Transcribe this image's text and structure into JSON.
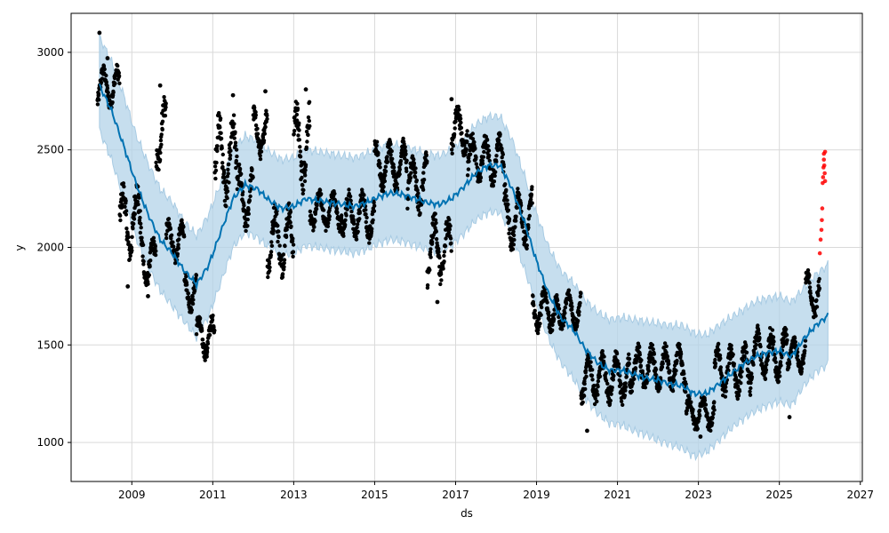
{
  "chart_data": {
    "type": "scatter",
    "title": "",
    "xlabel": "ds",
    "ylabel": "y",
    "xlim": [
      2007.5,
      2027.05
    ],
    "ylim": [
      800,
      3200
    ],
    "x_ticks": [
      2009,
      2011,
      2013,
      2015,
      2017,
      2019,
      2021,
      2023,
      2025,
      2027
    ],
    "y_ticks": [
      1000,
      1500,
      2000,
      2500,
      3000
    ],
    "grid": true,
    "legend": "none",
    "colors": {
      "observed": "#000000",
      "new_observed": "#ff0000",
      "forecast": "#0072B2",
      "interval_fill": "#b3d3e8",
      "grid": "#d9d9d9"
    },
    "forecast": {
      "x": [
        2008.2,
        2008.5,
        2008.8,
        2009.1,
        2009.4,
        2009.7,
        2010.0,
        2010.3,
        2010.6,
        2010.9,
        2011.2,
        2011.5,
        2011.8,
        2012.1,
        2012.4,
        2012.7,
        2013.0,
        2013.3,
        2013.6,
        2013.9,
        2014.2,
        2014.5,
        2014.8,
        2015.1,
        2015.4,
        2015.7,
        2016.0,
        2016.3,
        2016.6,
        2016.9,
        2017.2,
        2017.5,
        2017.8,
        2018.1,
        2018.4,
        2018.7,
        2019.0,
        2019.3,
        2019.6,
        2019.9,
        2020.2,
        2020.5,
        2020.8,
        2021.1,
        2021.4,
        2021.7,
        2022.0,
        2022.3,
        2022.6,
        2022.9,
        2023.2,
        2023.5,
        2023.8,
        2024.1,
        2024.4,
        2024.7,
        2025.0,
        2025.3,
        2025.6,
        2025.9,
        2026.2
      ],
      "yhat": [
        2830,
        2700,
        2520,
        2330,
        2170,
        2040,
        1970,
        1880,
        1810,
        1910,
        2080,
        2250,
        2320,
        2300,
        2240,
        2200,
        2210,
        2250,
        2240,
        2230,
        2220,
        2210,
        2230,
        2260,
        2280,
        2270,
        2250,
        2230,
        2220,
        2250,
        2310,
        2380,
        2420,
        2420,
        2300,
        2130,
        1930,
        1760,
        1640,
        1580,
        1480,
        1410,
        1370,
        1370,
        1350,
        1330,
        1320,
        1300,
        1290,
        1250,
        1250,
        1300,
        1350,
        1400,
        1440,
        1460,
        1470,
        1440,
        1530,
        1600,
        1650
      ],
      "yhat_lower": [
        2600,
        2450,
        2250,
        2050,
        1900,
        1780,
        1700,
        1620,
        1540,
        1650,
        1820,
        2000,
        2080,
        2050,
        2000,
        1960,
        1970,
        2010,
        2000,
        1990,
        1980,
        1970,
        1990,
        2020,
        2040,
        2030,
        2010,
        1990,
        1980,
        2010,
        2070,
        2140,
        2180,
        2180,
        2060,
        1890,
        1700,
        1530,
        1410,
        1330,
        1230,
        1150,
        1100,
        1090,
        1060,
        1040,
        1010,
        990,
        970,
        930,
        950,
        1010,
        1070,
        1120,
        1160,
        1190,
        1210,
        1190,
        1290,
        1360,
        1400
      ],
      "yhat_upper": [
        3080,
        2950,
        2780,
        2580,
        2430,
        2300,
        2230,
        2130,
        2060,
        2170,
        2330,
        2500,
        2570,
        2550,
        2490,
        2450,
        2460,
        2500,
        2490,
        2480,
        2470,
        2460,
        2480,
        2510,
        2530,
        2520,
        2500,
        2480,
        2470,
        2500,
        2560,
        2630,
        2670,
        2670,
        2550,
        2370,
        2170,
        2000,
        1880,
        1820,
        1730,
        1670,
        1630,
        1640,
        1630,
        1620,
        1610,
        1600,
        1600,
        1560,
        1550,
        1600,
        1640,
        1680,
        1720,
        1740,
        1750,
        1720,
        1790,
        1860,
        1910
      ]
    },
    "observed_segments": [
      {
        "x_start": 2008.15,
        "x_end": 2008.7,
        "y_center": 2820,
        "y_spread": 120
      },
      {
        "x_start": 2008.7,
        "x_end": 2009.3,
        "y_center": 2130,
        "y_spread": 220
      },
      {
        "x_start": 2009.3,
        "x_end": 2009.6,
        "y_center": 1920,
        "y_spread": 140
      },
      {
        "x_start": 2009.6,
        "x_end": 2009.85,
        "y_center": 2580,
        "y_spread": 220
      },
      {
        "x_start": 2009.85,
        "x_end": 2010.3,
        "y_center": 2030,
        "y_spread": 120
      },
      {
        "x_start": 2010.3,
        "x_end": 2010.6,
        "y_center": 1780,
        "y_spread": 120
      },
      {
        "x_start": 2010.6,
        "x_end": 2011.05,
        "y_center": 1540,
        "y_spread": 120
      },
      {
        "x_start": 2011.05,
        "x_end": 2011.6,
        "y_center": 2450,
        "y_spread": 260
      },
      {
        "x_start": 2011.6,
        "x_end": 2012.0,
        "y_center": 2250,
        "y_spread": 180
      },
      {
        "x_start": 2012.0,
        "x_end": 2012.35,
        "y_center": 2590,
        "y_spread": 140
      },
      {
        "x_start": 2012.35,
        "x_end": 2013.0,
        "y_center": 2040,
        "y_spread": 200
      },
      {
        "x_start": 2013.0,
        "x_end": 2013.4,
        "y_center": 2520,
        "y_spread": 250
      },
      {
        "x_start": 2013.4,
        "x_end": 2014.2,
        "y_center": 2190,
        "y_spread": 110
      },
      {
        "x_start": 2014.2,
        "x_end": 2015.0,
        "y_center": 2160,
        "y_spread": 140
      },
      {
        "x_start": 2015.0,
        "x_end": 2015.8,
        "y_center": 2420,
        "y_spread": 140
      },
      {
        "x_start": 2015.8,
        "x_end": 2016.3,
        "y_center": 2330,
        "y_spread": 170
      },
      {
        "x_start": 2016.3,
        "x_end": 2016.9,
        "y_center": 1990,
        "y_spread": 200
      },
      {
        "x_start": 2016.9,
        "x_end": 2017.3,
        "y_center": 2600,
        "y_spread": 140
      },
      {
        "x_start": 2017.3,
        "x_end": 2018.2,
        "y_center": 2450,
        "y_spread": 140
      },
      {
        "x_start": 2018.2,
        "x_end": 2018.9,
        "y_center": 2150,
        "y_spread": 180
      },
      {
        "x_start": 2018.9,
        "x_end": 2019.5,
        "y_center": 1680,
        "y_spread": 130
      },
      {
        "x_start": 2019.5,
        "x_end": 2020.1,
        "y_center": 1680,
        "y_spread": 110
      },
      {
        "x_start": 2020.1,
        "x_end": 2021.3,
        "y_center": 1330,
        "y_spread": 140
      },
      {
        "x_start": 2021.3,
        "x_end": 2022.7,
        "y_center": 1380,
        "y_spread": 130
      },
      {
        "x_start": 2022.7,
        "x_end": 2023.4,
        "y_center": 1150,
        "y_spread": 100
      },
      {
        "x_start": 2023.4,
        "x_end": 2024.3,
        "y_center": 1370,
        "y_spread": 150
      },
      {
        "x_start": 2024.3,
        "x_end": 2025.2,
        "y_center": 1450,
        "y_spread": 150
      },
      {
        "x_start": 2025.2,
        "x_end": 2025.65,
        "y_center": 1450,
        "y_spread": 100
      },
      {
        "x_start": 2025.65,
        "x_end": 2026.0,
        "y_center": 1760,
        "y_spread": 130
      }
    ],
    "observed_extremes": [
      {
        "x": 2008.2,
        "y": 3100
      },
      {
        "x": 2008.4,
        "y": 2970
      },
      {
        "x": 2009.7,
        "y": 2830
      },
      {
        "x": 2011.5,
        "y": 2780
      },
      {
        "x": 2012.3,
        "y": 2800
      },
      {
        "x": 2013.3,
        "y": 2810
      },
      {
        "x": 2016.9,
        "y": 2760
      },
      {
        "x": 2008.9,
        "y": 1800
      },
      {
        "x": 2009.4,
        "y": 1750
      },
      {
        "x": 2010.85,
        "y": 1440
      },
      {
        "x": 2016.55,
        "y": 1720
      },
      {
        "x": 2020.25,
        "y": 1060
      },
      {
        "x": 2023.05,
        "y": 1030
      },
      {
        "x": 2025.25,
        "y": 1130
      }
    ],
    "new_observed": [
      {
        "x": 2026.0,
        "y": 1970
      },
      {
        "x": 2026.02,
        "y": 2040
      },
      {
        "x": 2026.04,
        "y": 2090
      },
      {
        "x": 2026.05,
        "y": 2140
      },
      {
        "x": 2026.06,
        "y": 2200
      },
      {
        "x": 2026.07,
        "y": 2330
      },
      {
        "x": 2026.08,
        "y": 2360
      },
      {
        "x": 2026.09,
        "y": 2410
      },
      {
        "x": 2026.1,
        "y": 2450
      },
      {
        "x": 2026.1,
        "y": 2480
      },
      {
        "x": 2026.11,
        "y": 2420
      },
      {
        "x": 2026.12,
        "y": 2380
      },
      {
        "x": 2026.13,
        "y": 2340
      },
      {
        "x": 2026.13,
        "y": 2490
      }
    ]
  }
}
